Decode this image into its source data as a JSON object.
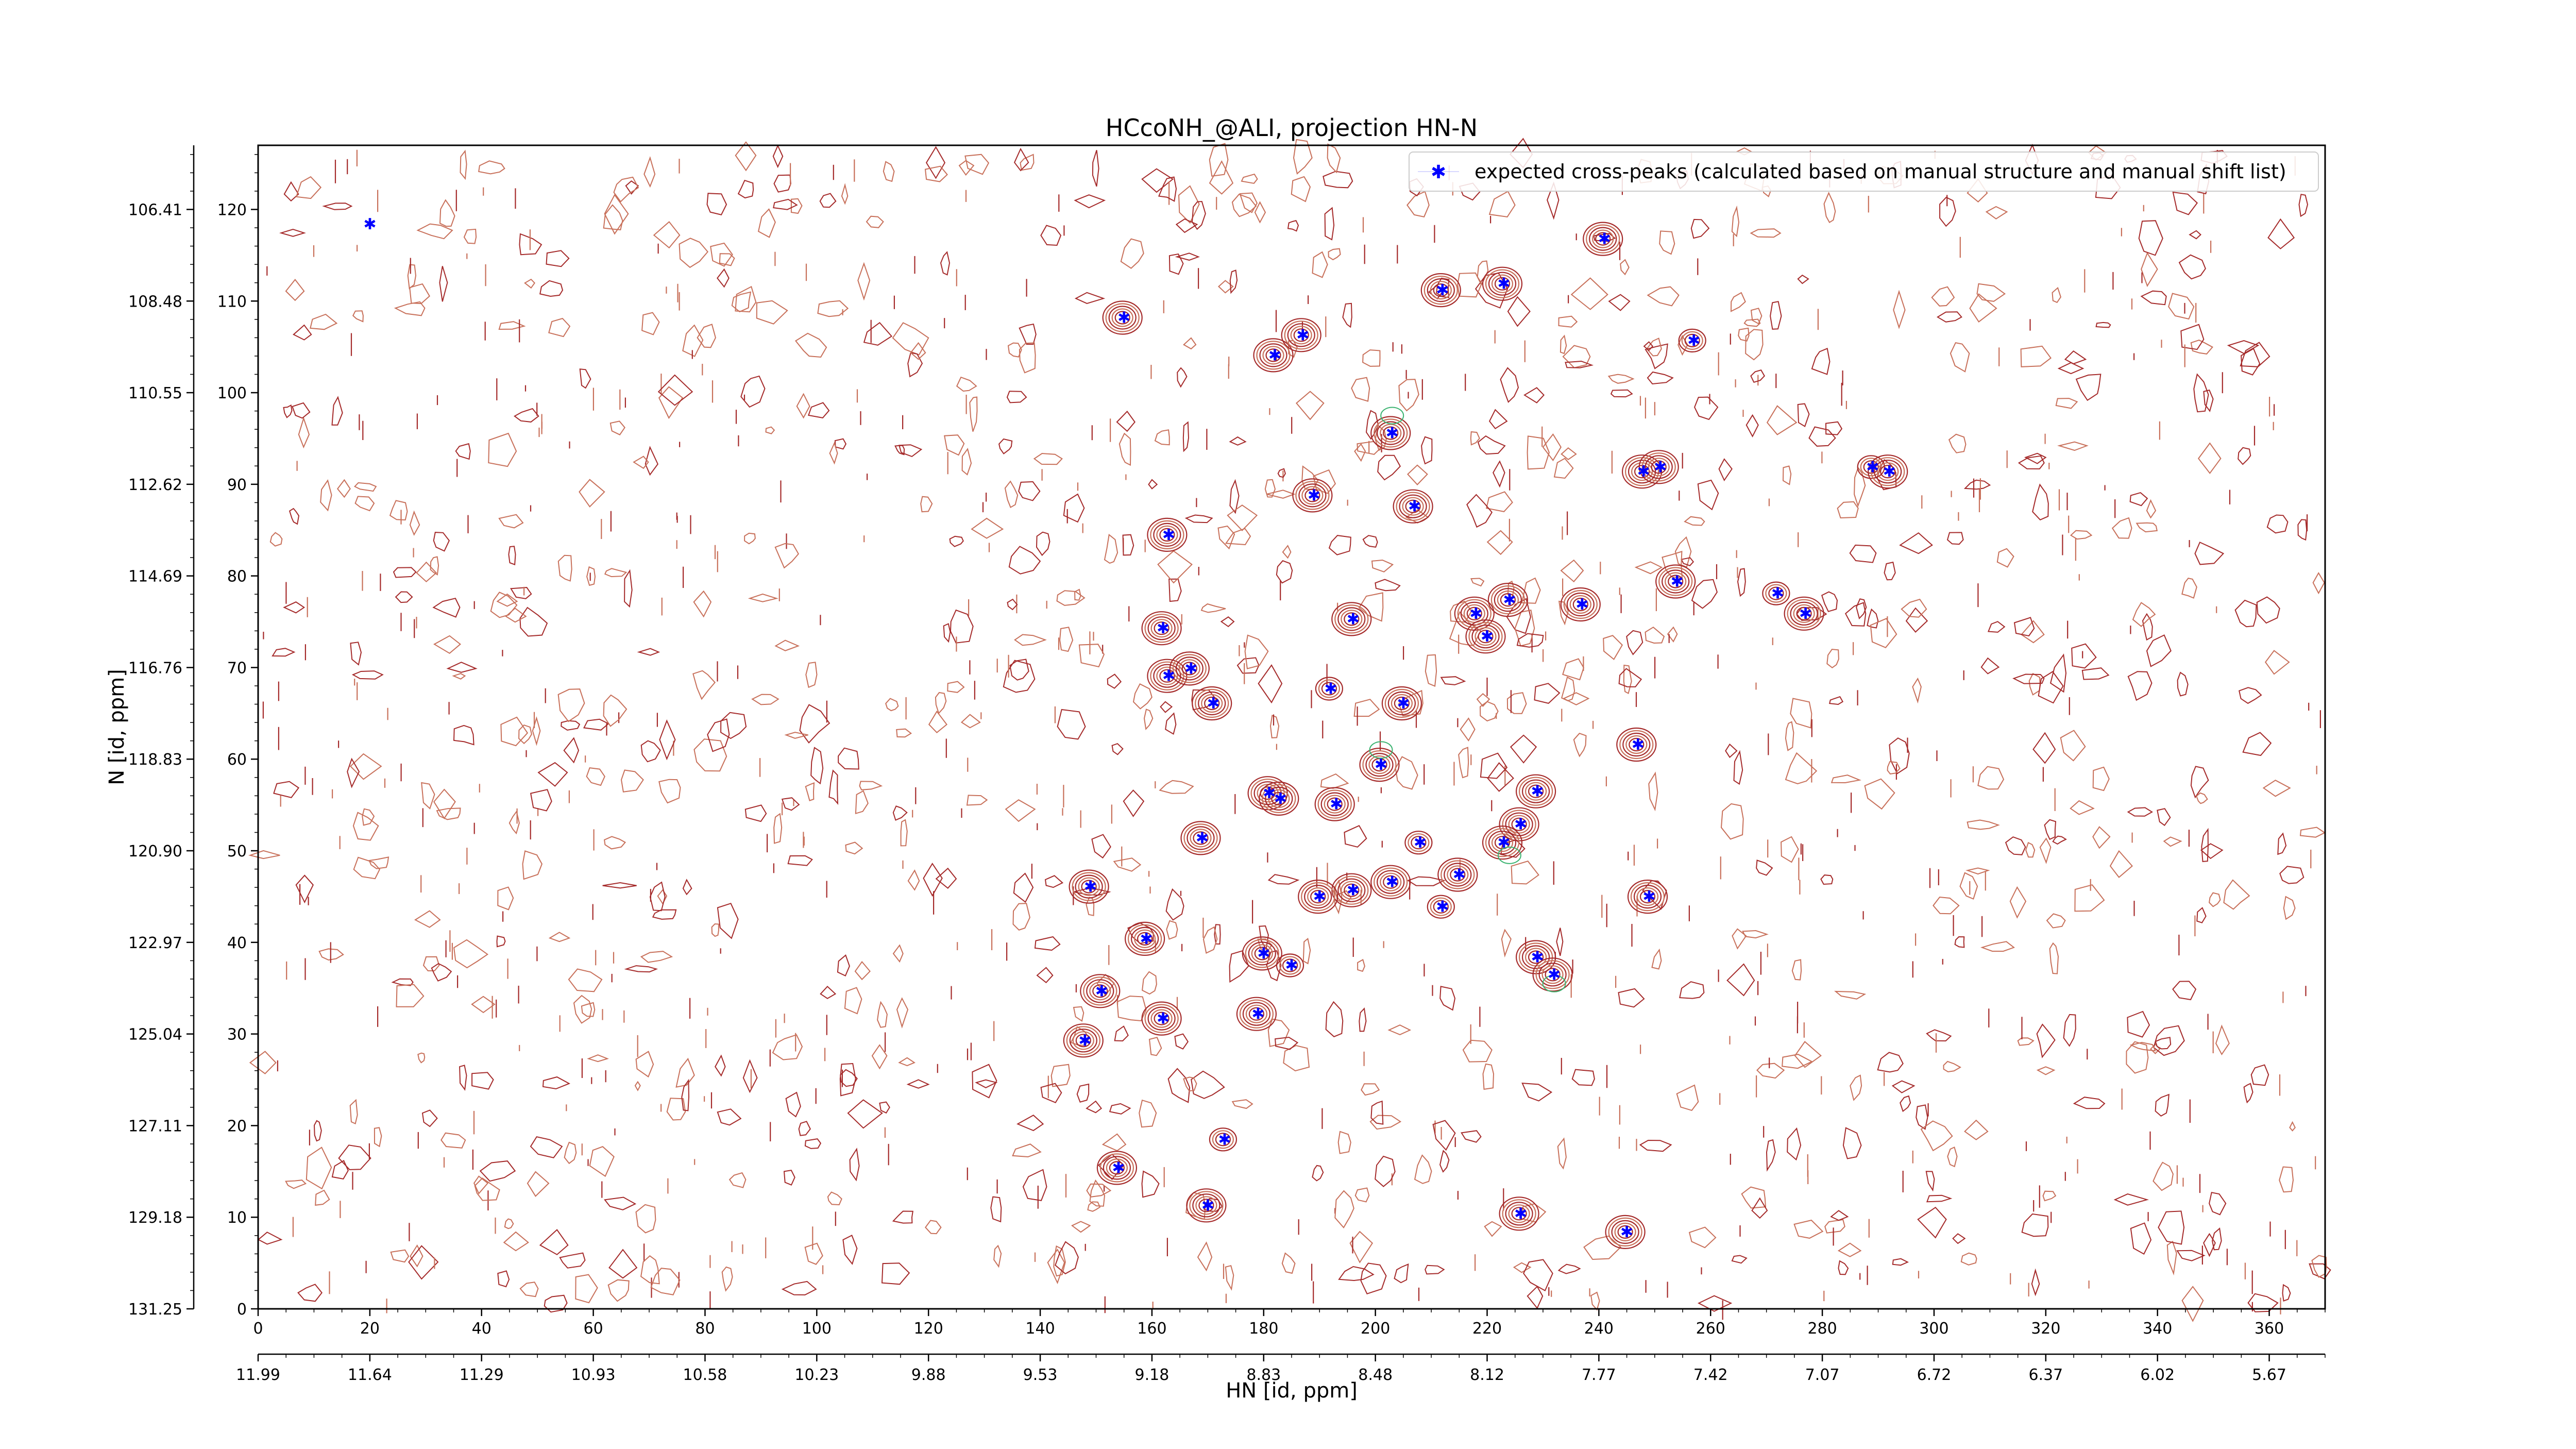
{
  "chart_data": {
    "type": "scatter",
    "title": "HCcoNH_@ALI, projection HN-N",
    "xlabel": "HN [id, ppm]",
    "ylabel": "N [id, ppm]",
    "legend": {
      "placement": "top-right",
      "entries": [
        "expected cross-peaks (calculated based on manual structure and manual shift list)"
      ]
    },
    "colors": {
      "contour": "#a52a2a",
      "contour_light": "#c8705a",
      "contour_green": "#3cb371",
      "peak": "#0000ff"
    },
    "x_index_axis": {
      "range": [
        0,
        370
      ],
      "ticks": [
        0,
        20,
        40,
        60,
        80,
        100,
        120,
        140,
        160,
        180,
        200,
        220,
        240,
        260,
        280,
        300,
        320,
        340,
        360
      ]
    },
    "x_ppm_axis": {
      "ticks": [
        "11.99",
        "11.64",
        "11.29",
        "10.93",
        "10.58",
        "10.23",
        "9.88",
        "9.53",
        "9.18",
        "8.83",
        "8.48",
        "8.12",
        "7.77",
        "7.42",
        "7.07",
        "6.72",
        "6.37",
        "6.02",
        "5.67"
      ]
    },
    "y_index_axis": {
      "range": [
        0,
        127
      ],
      "ticks": [
        0,
        10,
        20,
        30,
        40,
        50,
        60,
        70,
        80,
        90,
        100,
        110,
        120
      ]
    },
    "y_ppm_axis": {
      "ticks": [
        "131.25",
        "129.18",
        "127.11",
        "125.04",
        "122.97",
        "120.90",
        "118.83",
        "116.76",
        "114.69",
        "112.62",
        "110.55",
        "108.48",
        "106.41"
      ]
    },
    "series": [
      {
        "name": "expected cross-peaks (calculated based on manual structure and manual shift list)",
        "points": [
          [
            20,
            118.5
          ],
          [
            155,
            108.3
          ],
          [
            182,
            104.2
          ],
          [
            187,
            106.4
          ],
          [
            212,
            111.3
          ],
          [
            223,
            112.0
          ],
          [
            241,
            116.9
          ],
          [
            257,
            105.8
          ],
          [
            203,
            95.7
          ],
          [
            189,
            88.9
          ],
          [
            207,
            87.7
          ],
          [
            163,
            84.6
          ],
          [
            248,
            91.5
          ],
          [
            251,
            92.0
          ],
          [
            289,
            92.0
          ],
          [
            292,
            91.5
          ],
          [
            162,
            74.4
          ],
          [
            163,
            69.2
          ],
          [
            167,
            70.0
          ],
          [
            171,
            66.2
          ],
          [
            196,
            75.4
          ],
          [
            192,
            67.8
          ],
          [
            205,
            66.2
          ],
          [
            218,
            76.0
          ],
          [
            220,
            73.5
          ],
          [
            224,
            77.5
          ],
          [
            237,
            77.0
          ],
          [
            254,
            79.5
          ],
          [
            272,
            78.2
          ],
          [
            277,
            76.0
          ],
          [
            247,
            61.7
          ],
          [
            201,
            59.5
          ],
          [
            181,
            56.4
          ],
          [
            183,
            55.8
          ],
          [
            193,
            55.2
          ],
          [
            208,
            51.0
          ],
          [
            169,
            51.5
          ],
          [
            229,
            56.6
          ],
          [
            226,
            53.0
          ],
          [
            223,
            51.0
          ],
          [
            215,
            47.5
          ],
          [
            203,
            46.7
          ],
          [
            212,
            44.0
          ],
          [
            196,
            45.8
          ],
          [
            190,
            45.1
          ],
          [
            249,
            45.1
          ],
          [
            149,
            46.2
          ],
          [
            159,
            40.5
          ],
          [
            180,
            38.9
          ],
          [
            185,
            37.6
          ],
          [
            229,
            38.5
          ],
          [
            232,
            36.6
          ],
          [
            151,
            34.8
          ],
          [
            162,
            31.8
          ],
          [
            179,
            32.3
          ],
          [
            148,
            29.4
          ],
          [
            173,
            18.6
          ],
          [
            154,
            15.5
          ],
          [
            170,
            11.4
          ],
          [
            226,
            10.5
          ],
          [
            245,
            8.5
          ]
        ]
      }
    ]
  }
}
